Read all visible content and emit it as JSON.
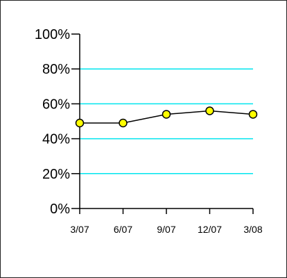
{
  "chart_data": {
    "type": "line",
    "title": "",
    "xlabel": "",
    "ylabel": "",
    "categories": [
      "3/07",
      "6/07",
      "9/07",
      "12/07",
      "3/08"
    ],
    "series": [
      {
        "values": [
          49,
          49,
          54,
          56,
          54
        ],
        "line_color": "#000000",
        "marker_fill": "#ffff00",
        "marker_edge": "#000000"
      }
    ],
    "ylim": [
      0,
      100
    ],
    "yticks": [
      0,
      20,
      40,
      60,
      80,
      100
    ],
    "ytick_labels": [
      "0%",
      "20%",
      "40%",
      "60%",
      "80%",
      "100%"
    ],
    "grid": {
      "horizontal": true,
      "vertical": false,
      "color": "#00e5ee"
    },
    "axis_color": "#000000",
    "legend": "none"
  }
}
